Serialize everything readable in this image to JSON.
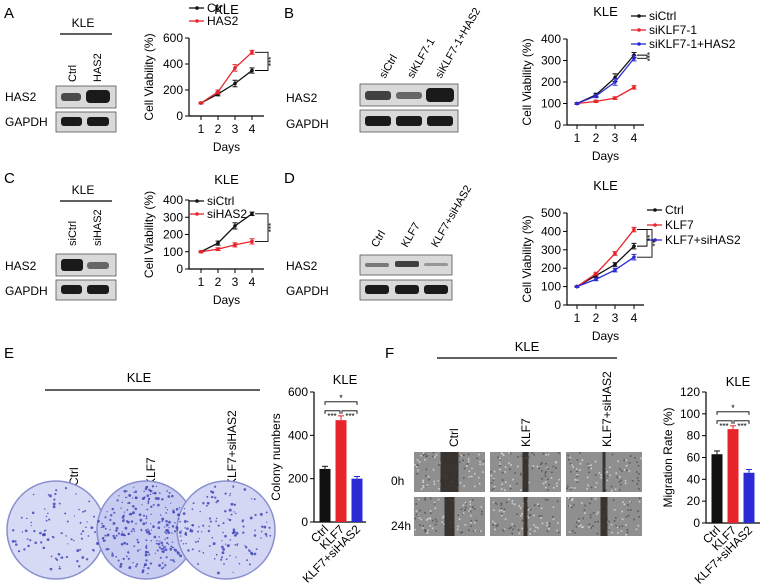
{
  "colors": {
    "black": "#111111",
    "red": "#e8242b",
    "blue": "#2b2bd6",
    "colony_plate": "#d6daf5",
    "colony_dots": "#3a3fb8",
    "wound_bg": "#8f8f8f"
  },
  "panels": {
    "A": {
      "letter": "A",
      "blot": {
        "group": "KLE",
        "lanes": [
          "Ctrl",
          "HAS2"
        ],
        "rows": [
          "HAS2",
          "GAPDH"
        ]
      },
      "chart_index": 0
    },
    "B": {
      "letter": "B",
      "blot": {
        "group": "",
        "lanes": [
          "siCtrl",
          "siKLF7-1",
          "siKLF7-1+HAS2"
        ],
        "rows": [
          "HAS2",
          "GAPDH"
        ]
      },
      "chart_index": 1
    },
    "C": {
      "letter": "C",
      "blot": {
        "group": "KLE",
        "lanes": [
          "siCtrl",
          "siHAS2"
        ],
        "rows": [
          "HAS2",
          "GAPDH"
        ]
      },
      "chart_index": 2
    },
    "D": {
      "letter": "D",
      "blot": {
        "group": "",
        "lanes": [
          "Ctrl",
          "KLF7",
          "KLF7+siHAS2"
        ],
        "rows": [
          "HAS2",
          "GAPDH"
        ]
      },
      "chart_index": 3
    },
    "E": {
      "letter": "E",
      "group": "KLE",
      "plates": [
        "Ctrl",
        "KLF7",
        "KLF7+siHAS2"
      ],
      "chart_index": 4
    },
    "F": {
      "letter": "F",
      "group": "KLE",
      "columns": [
        "Ctrl",
        "KLF7",
        "KLF7+siHAS2"
      ],
      "rows": [
        "0h",
        "24h"
      ],
      "chart_index": 5
    }
  },
  "chart_data": [
    {
      "type": "line",
      "title": "KLE",
      "xlabel": "Days",
      "ylabel": "Cell Viability (%)",
      "x": [
        1,
        2,
        3,
        4
      ],
      "xticks": [
        "1",
        "2",
        "3",
        "4"
      ],
      "ylim": [
        0,
        600
      ],
      "yticks": [
        "0",
        "200",
        "400",
        "600"
      ],
      "series": [
        {
          "name": "Ctrl",
          "color": "black",
          "values": [
            100,
            170,
            250,
            350
          ],
          "err": [
            6,
            15,
            25,
            20
          ]
        },
        {
          "name": "HAS2",
          "color": "red",
          "values": [
            100,
            185,
            370,
            490
          ],
          "err": [
            6,
            15,
            25,
            15
          ]
        }
      ],
      "significance": [
        "***"
      ]
    },
    {
      "type": "line",
      "title": "KLE",
      "xlabel": "Days",
      "ylabel": "Cell Viability (%)",
      "x": [
        1,
        2,
        3,
        4
      ],
      "xticks": [
        "1",
        "2",
        "3",
        "4"
      ],
      "ylim": [
        0,
        400
      ],
      "yticks": [
        "0",
        "100",
        "200",
        "300",
        "400"
      ],
      "series": [
        {
          "name": "siCtrl",
          "color": "black",
          "values": [
            100,
            140,
            220,
            325
          ],
          "err": [
            4,
            8,
            18,
            12
          ]
        },
        {
          "name": "siKLF7-1",
          "color": "red",
          "values": [
            100,
            110,
            125,
            175
          ],
          "err": [
            4,
            5,
            6,
            8
          ]
        },
        {
          "name": "siKLF7-1+HAS2",
          "color": "blue",
          "values": [
            100,
            135,
            200,
            310
          ],
          "err": [
            4,
            8,
            15,
            12
          ]
        }
      ],
      "significance": [
        "***"
      ]
    },
    {
      "type": "line",
      "title": "KLE",
      "xlabel": "Days",
      "ylabel": "Cell Viability (%)",
      "x": [
        1,
        2,
        3,
        4
      ],
      "xticks": [
        "1",
        "2",
        "3",
        "4"
      ],
      "ylim": [
        0,
        400
      ],
      "yticks": [
        "0",
        "100",
        "200",
        "300",
        "400"
      ],
      "series": [
        {
          "name": "siCtrl",
          "color": "black",
          "values": [
            100,
            150,
            250,
            320
          ],
          "err": [
            5,
            12,
            18,
            10
          ]
        },
        {
          "name": "siHAS2",
          "color": "red",
          "values": [
            100,
            115,
            140,
            160
          ],
          "err": [
            5,
            8,
            12,
            15
          ]
        }
      ],
      "significance": [
        "***"
      ]
    },
    {
      "type": "line",
      "title": "KLE",
      "xlabel": "Days",
      "ylabel": "Cell Viability (%)",
      "x": [
        1,
        2,
        3,
        4
      ],
      "xticks": [
        "1",
        "2",
        "3",
        "4"
      ],
      "ylim": [
        0,
        500
      ],
      "yticks": [
        "0",
        "100",
        "200",
        "300",
        "400",
        "500"
      ],
      "series": [
        {
          "name": "Ctrl",
          "color": "black",
          "values": [
            100,
            160,
            220,
            320
          ],
          "err": [
            4,
            8,
            10,
            15
          ]
        },
        {
          "name": "KLF7",
          "color": "red",
          "values": [
            100,
            170,
            280,
            410
          ],
          "err": [
            4,
            8,
            10,
            12
          ]
        },
        {
          "name": "KLF7+siHAS2",
          "color": "blue",
          "values": [
            100,
            140,
            190,
            260
          ],
          "err": [
            4,
            8,
            10,
            15
          ]
        }
      ],
      "significance": [
        "**",
        "**"
      ]
    },
    {
      "type": "bar",
      "title": "KLE",
      "xlabel": "",
      "ylabel": "Colony numbers",
      "categories": [
        "Ctrl",
        "KLF7",
        "KLF7+siHAS2"
      ],
      "values": [
        245,
        470,
        200
      ],
      "err": [
        12,
        20,
        10
      ],
      "colors": [
        "black",
        "red",
        "blue"
      ],
      "ylim": [
        0,
        600
      ],
      "yticks": [
        "0",
        "200",
        "400",
        "600"
      ],
      "significance": [
        "*",
        "***",
        "***"
      ]
    },
    {
      "type": "bar",
      "title": "KLE",
      "xlabel": "",
      "ylabel": "Migration Rate (%)",
      "categories": [
        "Ctrl",
        "KLF7",
        "KLF7+siHAS2"
      ],
      "values": [
        63,
        86,
        46
      ],
      "err": [
        3,
        3,
        3
      ],
      "colors": [
        "black",
        "red",
        "blue"
      ],
      "ylim": [
        0,
        120
      ],
      "yticks": [
        "0",
        "20",
        "40",
        "60",
        "80",
        "100",
        "120"
      ],
      "significance": [
        "*",
        "***",
        "***"
      ]
    }
  ]
}
